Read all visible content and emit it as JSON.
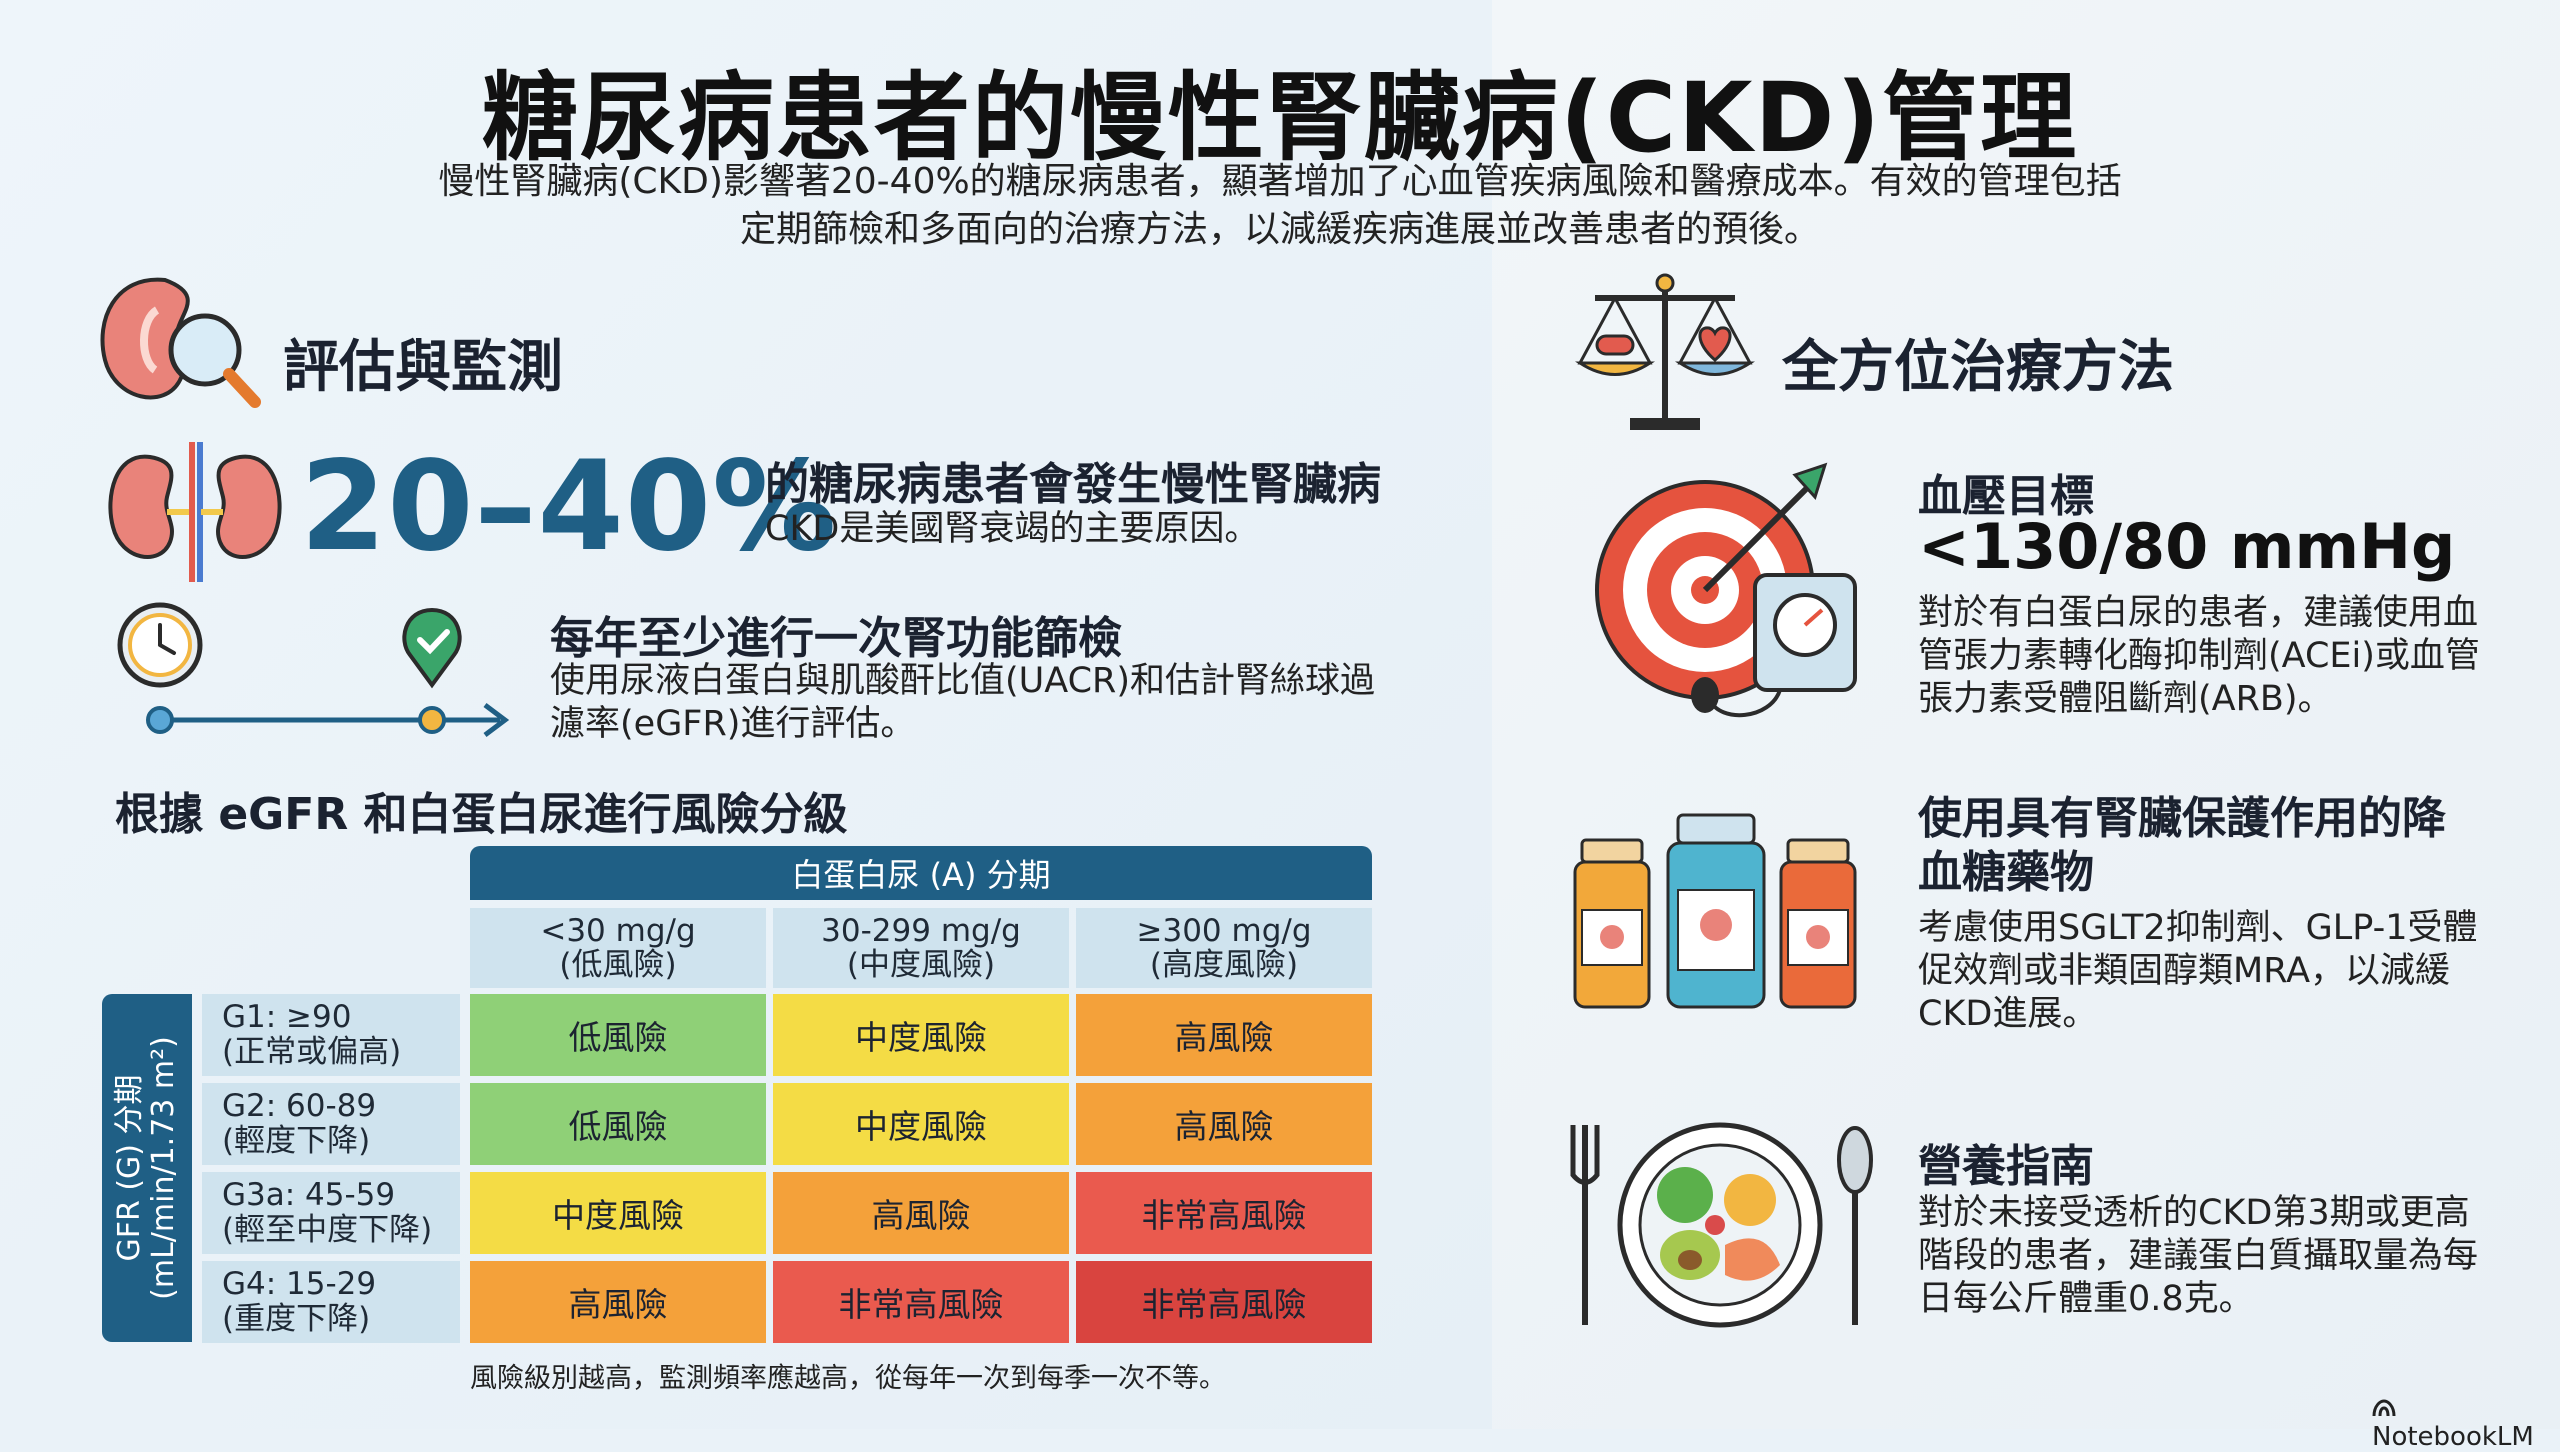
{
  "title": "糖尿病患者的慢性腎臟病(CKD)管理",
  "intro": [
    "慢性腎臟病(CKD)影響著20-40%的糖尿病患者，顯著增加了心血管疾病風險和醫療成本。有效的管理包括",
    "定期篩檢和多面向的治療方法，以減緩疾病進展並改善患者的預後。"
  ],
  "assessment": {
    "heading": "評估與監測",
    "stat": {
      "value": "20–40%",
      "headline": "的糖尿病患者會發生慢性腎臟病",
      "sub": "CKD是美國腎衰竭的主要原因。"
    },
    "screening": {
      "headline": "每年至少進行一次腎功能篩檢",
      "body": [
        "使用尿液白蛋白與肌酸酐比值(UACR)和估計腎絲球過",
        "濾率(eGFR)進行評估。"
      ]
    },
    "grid_title": "根據 eGFR 和白蛋白尿進行風險分級",
    "albuminuria_header": "白蛋白尿 (A) 分期",
    "columns": [
      {
        "range": "<30 mg/g",
        "desc": "(低風險)"
      },
      {
        "range": "30-299 mg/g",
        "desc": "(中度風險)"
      },
      {
        "range": "≥300 mg/g",
        "desc": "(高度風險)"
      }
    ],
    "gfr_axis": {
      "line1": "GFR (G) 分期",
      "line2": "(mL/min/1.73 m²)"
    },
    "rows": [
      {
        "stage": "G1: ≥90",
        "desc": "(正常或偏高)",
        "cells": [
          {
            "label": "低風險",
            "level": "low"
          },
          {
            "label": "中度風險",
            "level": "mid"
          },
          {
            "label": "高風險",
            "level": "high"
          }
        ]
      },
      {
        "stage": "G2: 60-89",
        "desc": "(輕度下降)",
        "cells": [
          {
            "label": "低風險",
            "level": "low"
          },
          {
            "label": "中度風險",
            "level": "mid"
          },
          {
            "label": "高風險",
            "level": "high"
          }
        ]
      },
      {
        "stage": "G3a: 45-59",
        "desc": "(輕至中度下降)",
        "cells": [
          {
            "label": "中度風險",
            "level": "mid"
          },
          {
            "label": "高風險",
            "level": "high"
          },
          {
            "label": "非常高風險",
            "level": "vhigh"
          }
        ]
      },
      {
        "stage": "G4: 15-29",
        "desc": "(重度下降)",
        "cells": [
          {
            "label": "高風險",
            "level": "high"
          },
          {
            "label": "非常高風險",
            "level": "vhigh"
          },
          {
            "label": "非常高風險",
            "level": "vhigh"
          }
        ]
      }
    ],
    "note": "風險級別越高，監測頻率應越高，從每年一次到每季一次不等。"
  },
  "treatment": {
    "heading": "全方位治療方法",
    "bp": {
      "headline": "血壓目標",
      "target": "<130/80 mmHg",
      "body": [
        "對於有白蛋白尿的患者，建議使用血",
        "管張力素轉化酶抑制劑(ACEi)或血管",
        "張力素受體阻斷劑(ARB)。"
      ]
    },
    "drugs": {
      "headline": [
        "使用具有腎臟保護作用的降",
        "血糖藥物"
      ],
      "body": [
        "考慮使用SGLT2抑制劑、GLP-1受體",
        "促效劑或非類固醇類MRA，以減緩",
        "CKD進展。"
      ]
    },
    "nutrition": {
      "headline": "營養指南",
      "body": [
        "對於未接受透析的CKD第3期或更高",
        "階段的患者，建議蛋白質攝取量為每",
        "日每公斤體重0.8克。"
      ]
    }
  },
  "brand": "NotebookLM",
  "colors": {
    "primary": "#1f5f85",
    "low": "#8fd077",
    "mid": "#f4dc45",
    "high": "#f4a13a",
    "vhigh": "#ea5a4e"
  },
  "icons": [
    "kidney-magnifier-icon",
    "kidneys-icon",
    "clock-icon",
    "checkmark-pin-icon",
    "timeline-arrow-icon",
    "balance-scale-icon",
    "target-arrow-icon",
    "blood-pressure-monitor-icon",
    "medicine-bottles-icon",
    "plate-fork-spoon-icon",
    "notebooklm-logo-icon"
  ]
}
